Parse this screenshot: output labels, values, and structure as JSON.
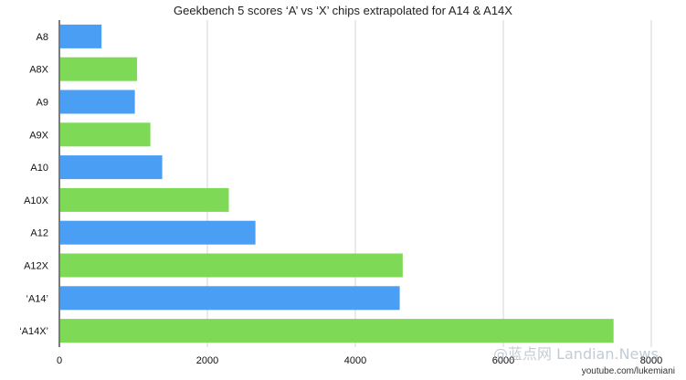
{
  "chart_data": {
    "type": "bar",
    "orientation": "horizontal",
    "title": "Geekbench 5 scores ‘A’ vs ‘X’ chips extrapolated for A14 & A14X",
    "xlabel": "",
    "ylabel": "",
    "xlim": [
      0,
      8000
    ],
    "xticks": [
      0,
      2000,
      4000,
      6000,
      8000
    ],
    "grid": true,
    "categories": [
      "A8",
      "A8X",
      "A9",
      "A9X",
      "A10",
      "A10X",
      "A12",
      "A12X",
      "‘A14’",
      "‘A14X’"
    ],
    "values": [
      570,
      1050,
      1020,
      1230,
      1390,
      2290,
      2650,
      4640,
      4600,
      7490
    ],
    "bar_colors": [
      "#4a9ff5",
      "#7ed957",
      "#4a9ff5",
      "#7ed957",
      "#4a9ff5",
      "#7ed957",
      "#4a9ff5",
      "#7ed957",
      "#4a9ff5",
      "#7ed957"
    ],
    "source_credit": "youtube.com/lukemiani"
  },
  "watermark": "@蓝点网 Landian.News"
}
